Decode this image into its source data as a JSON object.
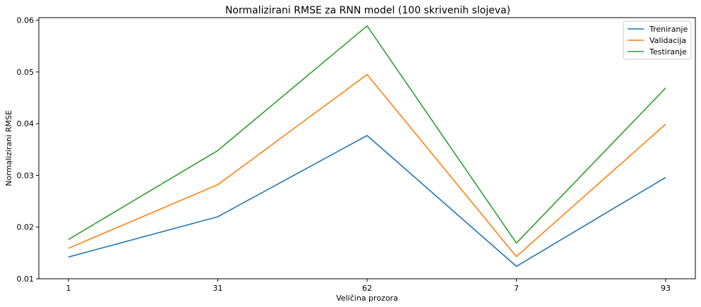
{
  "chart_data": {
    "type": "line",
    "title": "Normalizirani RMSE za RNN model (100 skrivenih slojeva)",
    "xlabel": "Veličina prozora",
    "ylabel": "Normalizirani RMSE",
    "categories": [
      "1",
      "31",
      "62",
      "7",
      "93"
    ],
    "ylim": [
      0.01,
      0.0605
    ],
    "yticks": [
      "0.01",
      "0.02",
      "0.03",
      "0.04",
      "0.05",
      "0.06"
    ],
    "grid": false,
    "legend_position": "top-right",
    "series": [
      {
        "name": "Treniranje",
        "color": "#1f77b4",
        "values": [
          0.0142,
          0.022,
          0.0377,
          0.0124,
          0.0296
        ]
      },
      {
        "name": "Validacija",
        "color": "#ff7f0e",
        "values": [
          0.0159,
          0.0282,
          0.0495,
          0.0143,
          0.0399
        ]
      },
      {
        "name": "Testiranje",
        "color": "#2ca02c",
        "values": [
          0.0176,
          0.0348,
          0.0589,
          0.0169,
          0.0469
        ]
      }
    ]
  }
}
